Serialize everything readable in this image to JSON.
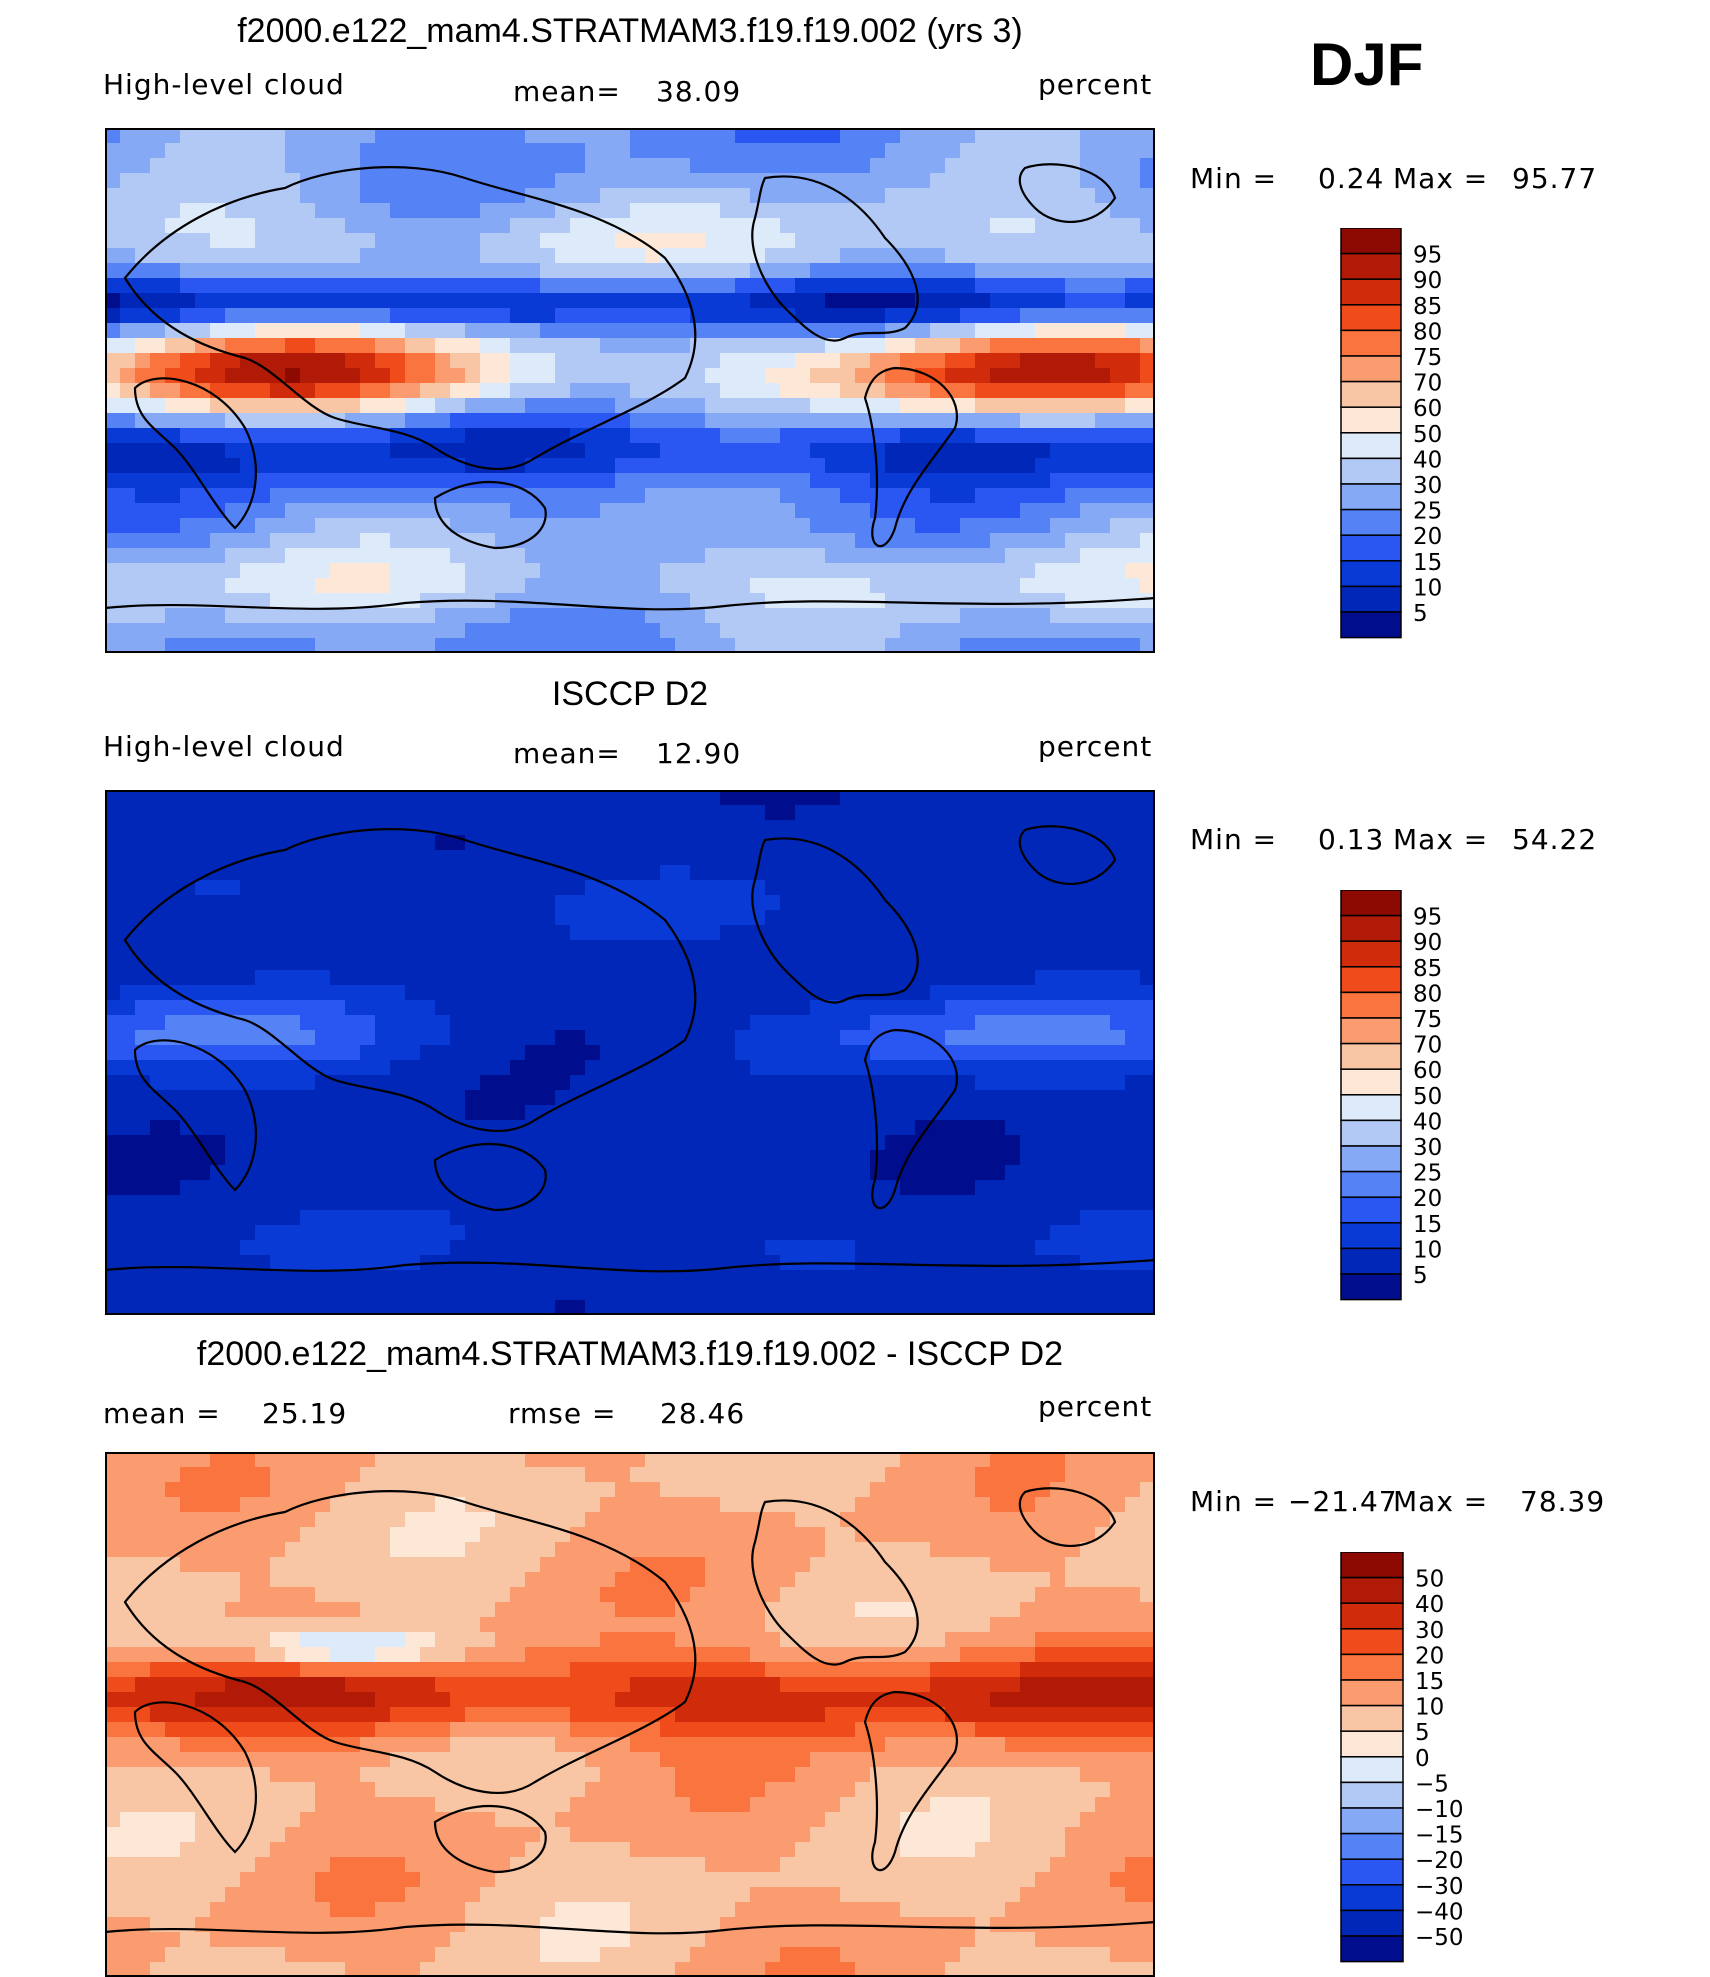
{
  "season": "DJF",
  "colors": {
    "seq": [
      "#000d8c",
      "#0027b8",
      "#0a3ad6",
      "#2a56f2",
      "#5582f5",
      "#85a9f5",
      "#b3c9f5",
      "#dceaf9",
      "#fde8d8",
      "#f8c6a5",
      "#fb9c70",
      "#f9743e",
      "#f04b1a",
      "#d02c0c",
      "#b01a06",
      "#8c0a02"
    ],
    "diff": [
      "#000d8c",
      "#0027b8",
      "#0a3ad6",
      "#2a56f2",
      "#5582f5",
      "#85a9f5",
      "#b3c9f5",
      "#dceaf9",
      "#fde8d8",
      "#f8c6a5",
      "#fb9c70",
      "#f9743e",
      "#f04b1a",
      "#d02c0c",
      "#b01a06",
      "#8c0a02"
    ]
  },
  "chart_data": [
    {
      "type": "heatmap",
      "name": "model",
      "title": "f2000.e122_mam4.STRATMAM3.f19.f19.002 (yrs 3)",
      "variable": "High-level cloud",
      "mean_label": "mean=",
      "mean": "38.09",
      "units": "percent",
      "min_label": "Min =",
      "min": "0.24",
      "max_label": "Max =",
      "max": "95.77",
      "levels": [
        "95",
        "90",
        "85",
        "80",
        "75",
        "70",
        "60",
        "50",
        "40",
        "30",
        "25",
        "20",
        "15",
        "10",
        "5"
      ],
      "value_range": [
        0,
        100
      ]
    },
    {
      "type": "heatmap",
      "name": "obs",
      "title": "ISCCP D2",
      "variable": "High-level cloud",
      "mean_label": "mean=",
      "mean": "12.90",
      "units": "percent",
      "min_label": "Min =",
      "min": "0.13",
      "max_label": "Max =",
      "max": "54.22",
      "levels": [
        "95",
        "90",
        "85",
        "80",
        "75",
        "70",
        "60",
        "50",
        "40",
        "30",
        "25",
        "20",
        "15",
        "10",
        "5"
      ],
      "value_range": [
        0,
        100
      ]
    },
    {
      "type": "heatmap",
      "name": "diff",
      "title": "f2000.e122_mam4.STRATMAM3.f19.f19.002 - ISCCP D2",
      "mean_label": "mean =",
      "mean": "25.19",
      "rmse_label": "rmse =",
      "rmse": "28.46",
      "units": "percent",
      "min_label": "Min =",
      "min": "−21.47",
      "max_label": "Max =",
      "max": "78.39",
      "levels": [
        "50",
        "40",
        "30",
        "20",
        "15",
        "10",
        "5",
        "0",
        "−5",
        "−10",
        "−15",
        "−20",
        "−30",
        "−40",
        "−50"
      ],
      "value_range": [
        -60,
        60
      ]
    }
  ]
}
